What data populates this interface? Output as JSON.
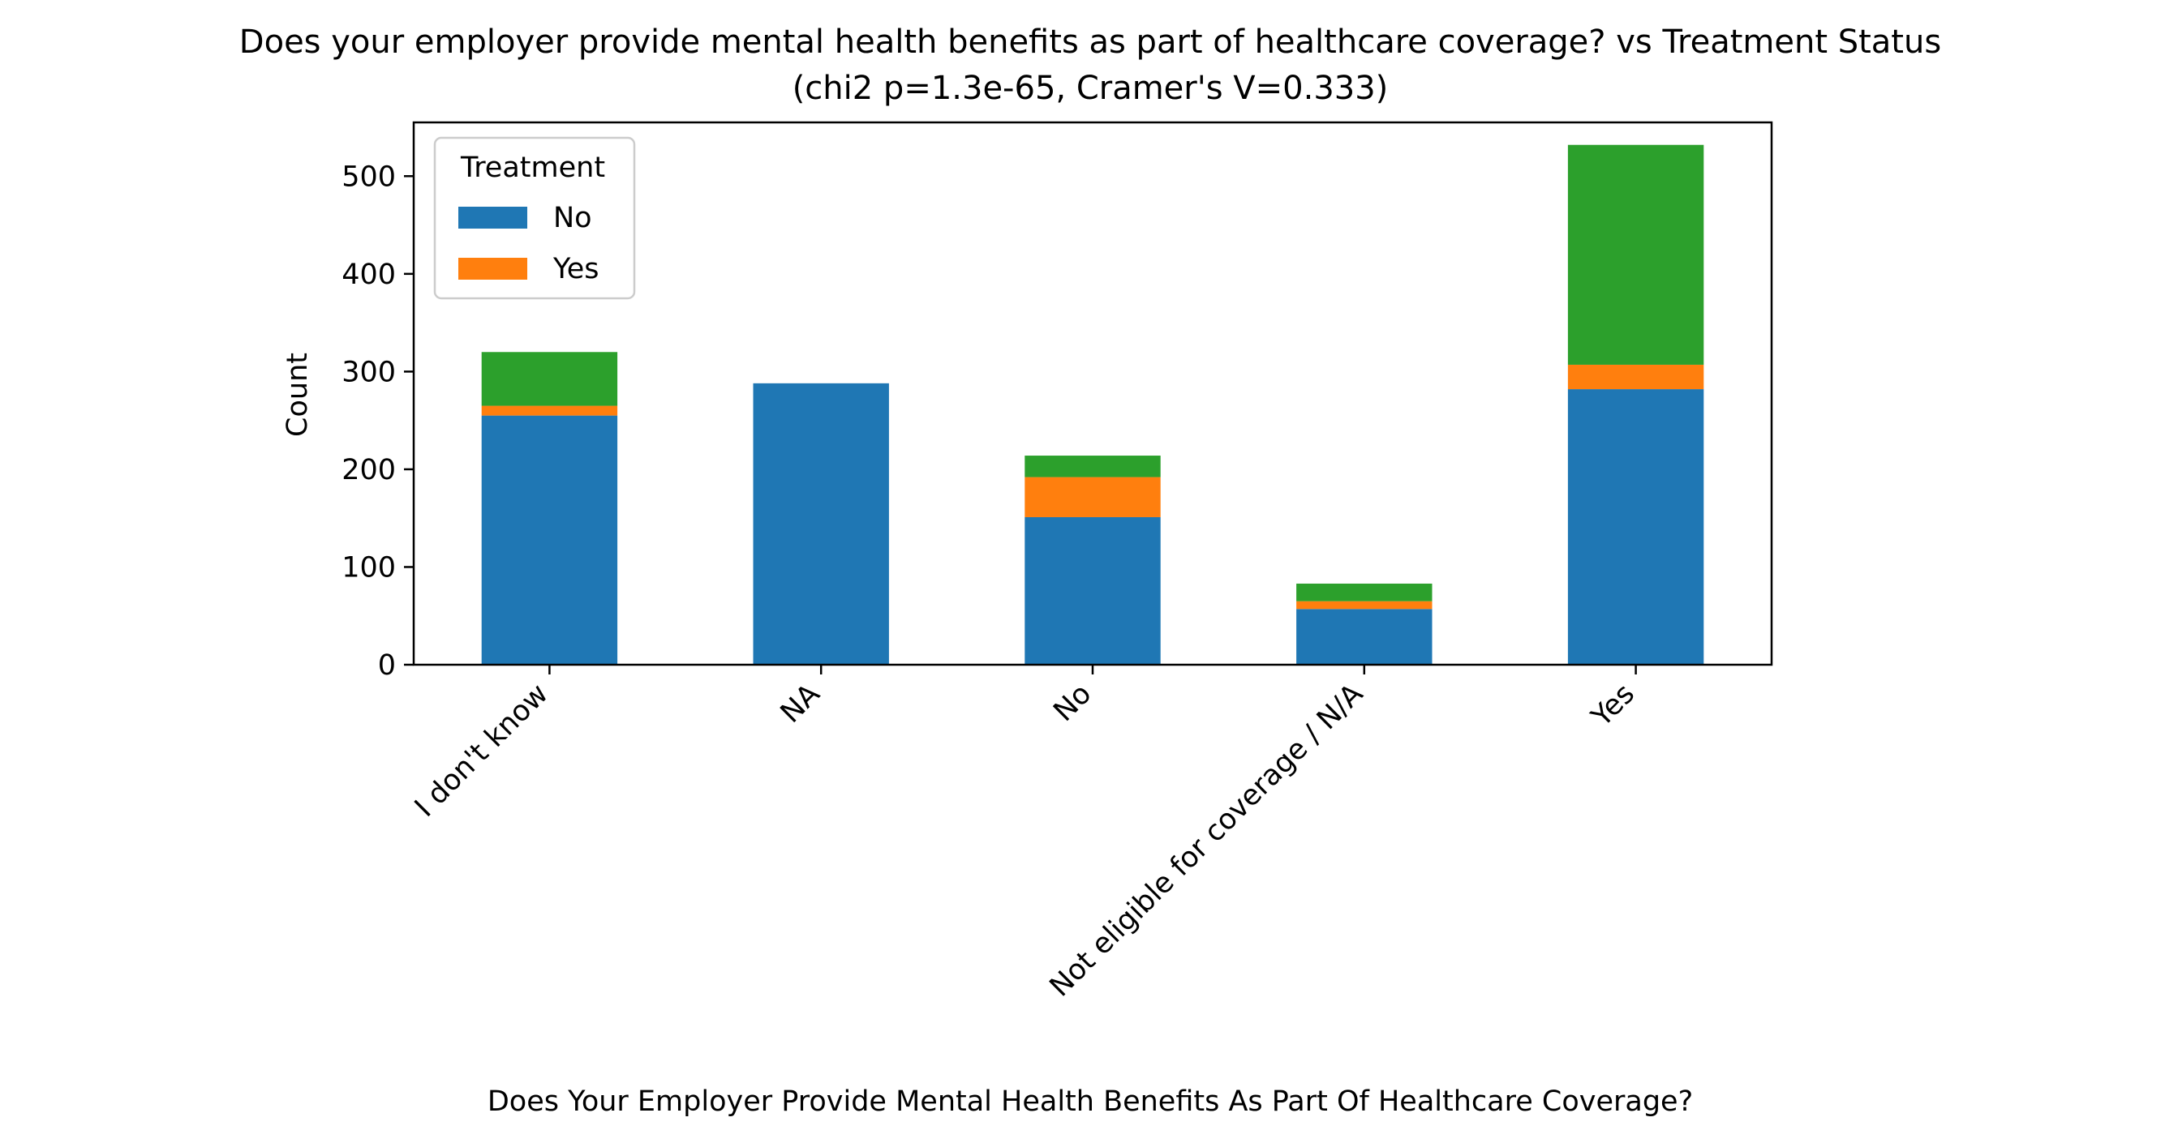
{
  "chart_data": {
    "type": "bar",
    "stacked": true,
    "title": "Does your employer provide mental health benefits as part of healthcare coverage? vs Treatment Status",
    "subtitle": "(chi2 p=1.3e-65, Cramer's V=0.333)",
    "xlabel": "Does Your Employer Provide Mental Health Benefits As Part Of Healthcare Coverage?",
    "ylabel": "Count",
    "ylim": [
      0,
      555
    ],
    "yticks": [
      0,
      100,
      200,
      300,
      400,
      500
    ],
    "categories": [
      "I don't know",
      "NA",
      "No",
      "Not eligible for coverage / N/A",
      "Yes"
    ],
    "series": [
      {
        "name": "No",
        "color": "#1f77b4",
        "values": [
          255,
          288,
          151,
          57,
          282
        ]
      },
      {
        "name": "Yes",
        "color": "#ff7f0e",
        "values": [
          10,
          0,
          41,
          8,
          25
        ]
      },
      {
        "color": "#2ca02c",
        "values": [
          55,
          0,
          22,
          18,
          225
        ]
      }
    ],
    "legend": {
      "title": "Treatment",
      "placement": "upper-left",
      "entries": [
        "No",
        "Yes"
      ]
    },
    "grid": false
  }
}
